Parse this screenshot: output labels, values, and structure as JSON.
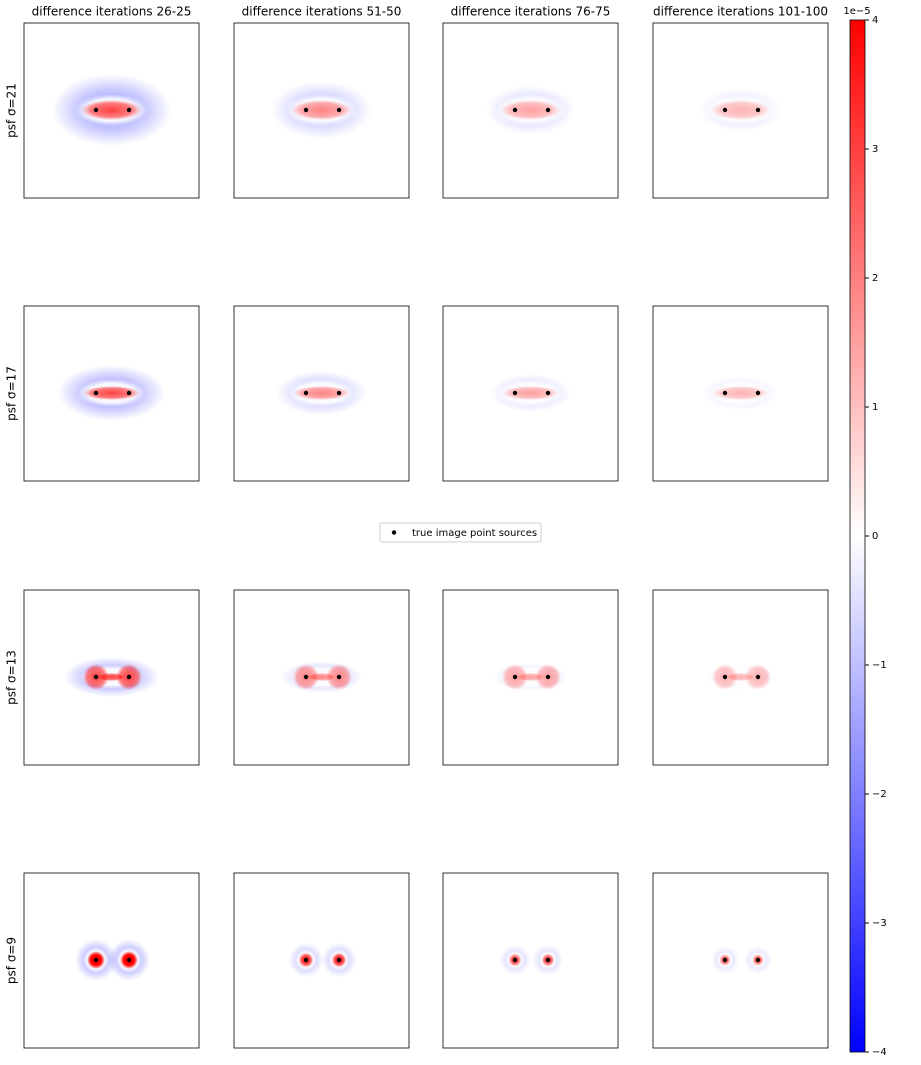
{
  "chart_data": {
    "type": "heatmap-grid",
    "column_titles": [
      "difference iterations 26-25",
      "difference iterations 51-50",
      "difference iterations 76-75",
      "difference iterations 101-100"
    ],
    "row_labels": [
      "psf σ=21",
      "psf σ=17",
      "psf σ=13",
      "psf σ=9"
    ],
    "legend": "true image point sources",
    "marker_color": "#000000",
    "colorbar": {
      "ylim": [
        -4,
        4
      ],
      "yticks": [
        {
          "value": -4,
          "label": "−4"
        },
        {
          "value": -3,
          "label": "−3"
        },
        {
          "value": -2,
          "label": "−2"
        },
        {
          "value": -1,
          "label": "−1"
        },
        0,
        1,
        2,
        3,
        4
      ],
      "offset_label": "1e−5",
      "colors": [
        "#0000ff",
        "#ffffff",
        "#ff0000"
      ]
    }
  }
}
